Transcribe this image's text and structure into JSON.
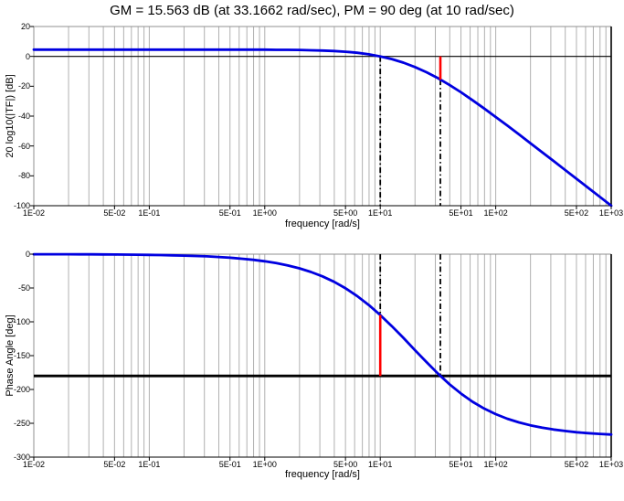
{
  "title": "GM = 15.563 dB (at 33.1662 rad/sec), PM = 90 deg (at 10 rad/sec)",
  "stability_margins": {
    "gain_margin_db": 15.563,
    "gain_margin_freq_rad_s": 33.1662,
    "phase_margin_deg": 90,
    "phase_margin_freq_rad_s": 10
  },
  "colors": {
    "background": "#ffffff",
    "curve": "#0000e0",
    "marker_red": "#ff0000",
    "marker_dashdot": "#000000",
    "grid": "#b0b0b0",
    "frame_light": "#909090",
    "frame_dark": "#000000",
    "reference_line": "#000000",
    "text": "#000000"
  },
  "chart_data": [
    {
      "type": "line",
      "name": "magnitude",
      "xlabel": "frequency [rad/s]",
      "ylabel": "20 log10(|TF|) [dB]",
      "xscale": "log",
      "xlim": [
        0.01,
        1000
      ],
      "ylim": [
        -100,
        20
      ],
      "grid": "vertical-log-minor-only",
      "legend": "none",
      "yticks": [
        20,
        0,
        -20,
        -40,
        -60,
        -80,
        -100
      ],
      "ytick_labels": [
        "20",
        "0",
        "-20",
        "-40",
        "-60",
        "-80",
        "-100"
      ],
      "xticks": [
        0.01,
        0.05,
        0.1,
        0.5,
        1,
        5,
        10,
        50,
        100,
        500,
        1000
      ],
      "xtick_labels": [
        "1E-02",
        "5E-02",
        "1E-01",
        "5E-01",
        "1E+00",
        "5E+00",
        "1E+01",
        "5E+01",
        "1E+02",
        "5E+02",
        "1E+03"
      ],
      "reference_line_y": 0,
      "markers": {
        "gain_crossover_freq": 10,
        "phase_crossover_freq": 33.1662,
        "mag_at_phase_crossover_db": -15.563
      },
      "x": [
        0.01,
        0.01259,
        0.01585,
        0.01995,
        0.02512,
        0.03162,
        0.03981,
        0.05012,
        0.0631,
        0.07943,
        0.1,
        0.1259,
        0.1585,
        0.1995,
        0.2512,
        0.3162,
        0.3981,
        0.5012,
        0.631,
        0.7943,
        1,
        1.259,
        1.585,
        1.995,
        2.512,
        3.162,
        3.981,
        5.012,
        6.31,
        7.943,
        10,
        12.59,
        15.85,
        19.95,
        25.12,
        31.62,
        39.81,
        50.12,
        63.1,
        79.43,
        100,
        125.9,
        158.5,
        199.5,
        251.2,
        316.2,
        398.1,
        501.2,
        631,
        794.3,
        1000
      ],
      "y": [
        4.5,
        4.5,
        4.5,
        4.5,
        4.5,
        4.5,
        4.5,
        4.5,
        4.5,
        4.5,
        4.5,
        4.5,
        4.5,
        4.5,
        4.5,
        4.5,
        4.5,
        4.5,
        4.5,
        4.5,
        4.5,
        4.4,
        4.4,
        4.3,
        4.1,
        3.9,
        3.6,
        3.1,
        2.4,
        1.4,
        0,
        -1.8,
        -4.2,
        -7.1,
        -10.6,
        -14.6,
        -19.1,
        -24.1,
        -29.4,
        -34.9,
        -40.6,
        -46.3,
        -52.2,
        -58.1,
        -64.1,
        -70,
        -76,
        -82,
        -88,
        -94,
        -100
      ]
    },
    {
      "type": "line",
      "name": "phase",
      "xlabel": "frequency [rad/s]",
      "ylabel": "Phase Angle [deg]",
      "xscale": "log",
      "xlim": [
        0.01,
        1000
      ],
      "ylim": [
        -300,
        0
      ],
      "grid": "vertical-log-minor-only",
      "legend": "none",
      "yticks": [
        0,
        -50,
        -100,
        -150,
        -200,
        -250,
        -300
      ],
      "ytick_labels": [
        "0",
        "-50",
        "-100",
        "-150",
        "-200",
        "-250",
        "-300"
      ],
      "xticks": [
        0.01,
        0.05,
        0.1,
        0.5,
        1,
        5,
        10,
        50,
        100,
        500,
        1000
      ],
      "xtick_labels": [
        "1E-02",
        "5E-02",
        "1E-01",
        "5E-01",
        "1E+00",
        "5E+00",
        "1E+01",
        "5E+01",
        "1E+02",
        "5E+02",
        "1E+03"
      ],
      "reference_line_y": -180,
      "markers": {
        "gain_crossover_freq": 10,
        "phase_crossover_freq": 33.1662,
        "phase_at_gain_crossover_deg": -90
      },
      "x": [
        0.01,
        0.01259,
        0.01585,
        0.01995,
        0.02512,
        0.03162,
        0.03981,
        0.05012,
        0.0631,
        0.07943,
        0.1,
        0.1259,
        0.1585,
        0.1995,
        0.2512,
        0.3162,
        0.3981,
        0.5012,
        0.631,
        0.7943,
        1,
        1.259,
        1.585,
        1.995,
        2.512,
        3.162,
        3.981,
        5.012,
        6.31,
        7.943,
        10,
        12.59,
        15.85,
        19.95,
        25.12,
        31.62,
        39.81,
        50.12,
        63.1,
        79.43,
        100,
        125.9,
        158.5,
        199.5,
        251.2,
        316.2,
        398.1,
        501.2,
        631,
        794.3,
        1000
      ],
      "y": [
        -0.1,
        -0.1,
        -0.2,
        -0.2,
        -0.3,
        -0.3,
        -0.4,
        -0.5,
        -0.7,
        -0.8,
        -1.1,
        -1.3,
        -1.7,
        -2.1,
        -2.7,
        -3.3,
        -4.2,
        -5.3,
        -6.7,
        -8.4,
        -10.6,
        -13.3,
        -16.7,
        -21,
        -26.3,
        -32.8,
        -40.8,
        -50.5,
        -61.9,
        -75.1,
        -90,
        -106.3,
        -123.7,
        -141.7,
        -159.5,
        -176.6,
        -192.3,
        -206.2,
        -218.2,
        -228.2,
        -236.5,
        -243.2,
        -248.6,
        -253,
        -256.5,
        -259.2,
        -261.4,
        -263.2,
        -264.6,
        -265.7,
        -266.6
      ]
    }
  ]
}
